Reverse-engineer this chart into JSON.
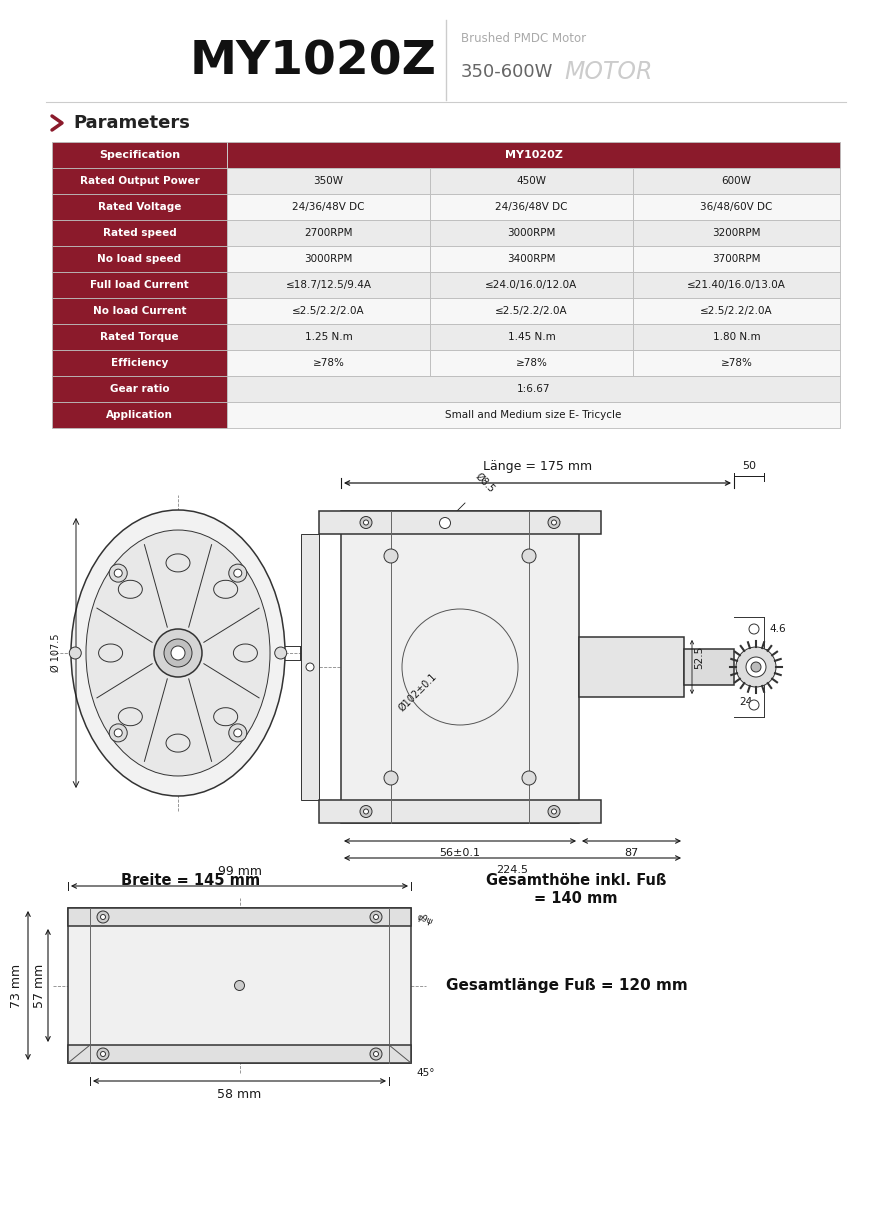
{
  "title_model": "MY1020Z",
  "title_sub1": "Brushed PMDC Motor",
  "title_sub2": "350-600W",
  "title_sub2_italic": "MOTOR",
  "section_title": "Parameters",
  "table_rows": [
    [
      "Rated Output Power",
      "350W",
      "450W",
      "600W"
    ],
    [
      "Rated Voltage",
      "24/36/48V DC",
      "24/36/48V DC",
      "36/48/60V DC"
    ],
    [
      "Rated speed",
      "2700RPM",
      "3000RPM",
      "3200RPM"
    ],
    [
      "No load speed",
      "3000RPM",
      "3400RPM",
      "3700RPM"
    ],
    [
      "Full load Current",
      "≤18.7/12.5/9.4A",
      "≤24.0/16.0/12.0A",
      "≤21.40/16.0/13.0A"
    ],
    [
      "No load Current",
      "≤2.5/2.2/2.0A",
      "≤2.5/2.2/2.0A",
      "≤2.5/2.2/2.0A"
    ],
    [
      "Rated Torque",
      "1.25 N.m",
      "1.45 N.m",
      "1.80 N.m"
    ],
    [
      "Efficiency",
      "≥78%",
      "≥78%",
      "≥78%"
    ],
    [
      "Gear ratio",
      "1:6.67",
      "",
      ""
    ],
    [
      "Application",
      "Small and Medium size E- Tricycle",
      "",
      ""
    ]
  ],
  "header_bg": "#8B1A2B",
  "row_bg_alt": "#EBEBEB",
  "row_bg_norm": "#F7F7F7",
  "border_color": "#BBBBBB",
  "text_dark": "#1A1A1A",
  "bg_color": "#FFFFFF",
  "dim_lange": "Länge = 175 mm",
  "dim_breite": "Breite = 145 mm",
  "dim_gesamthohe1": "Gesamthöhe inkl. Fuß",
  "dim_gesamthohe2": "= 140 mm",
  "dim_gesamtlaenge": "Gesamtlänge Fuß = 120 mm",
  "dim_99": "99 mm",
  "dim_58": "58 mm",
  "dim_73": "73 mm",
  "dim_57": "57 mm"
}
